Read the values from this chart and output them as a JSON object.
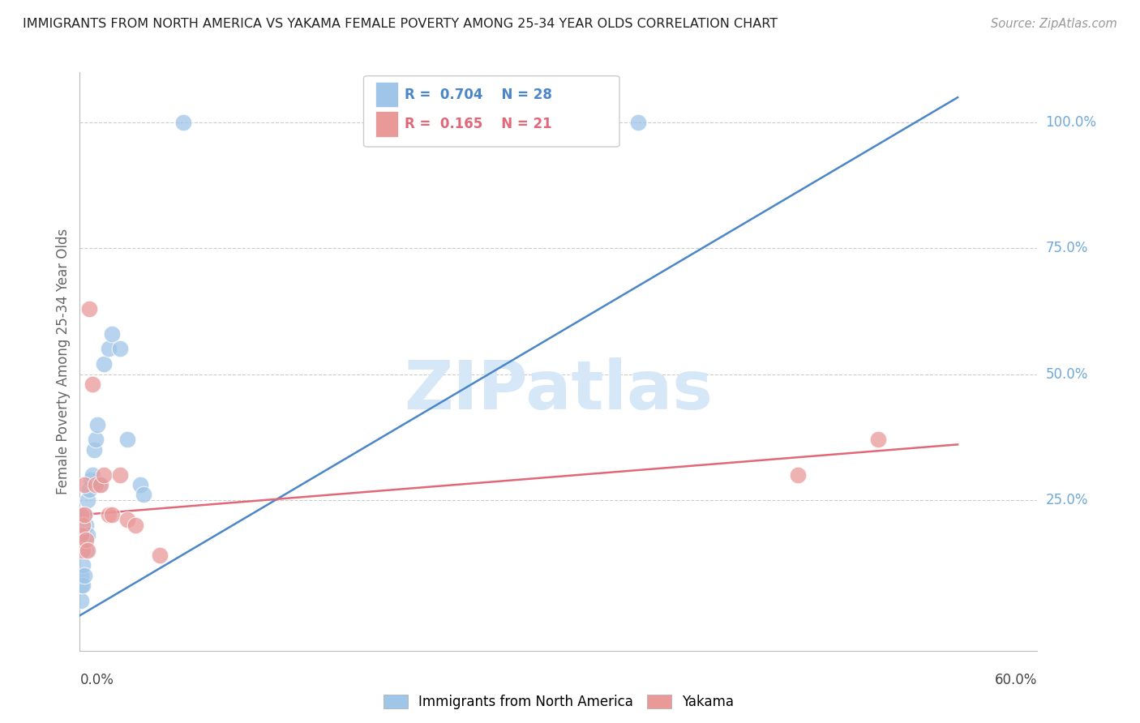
{
  "title": "IMMIGRANTS FROM NORTH AMERICA VS YAKAMA FEMALE POVERTY AMONG 25-34 YEAR OLDS CORRELATION CHART",
  "source": "Source: ZipAtlas.com",
  "ylabel": "Female Poverty Among 25-34 Year Olds",
  "legend1_R": "0.704",
  "legend1_N": "28",
  "legend2_R": "0.165",
  "legend2_N": "21",
  "blue_color": "#9fc5e8",
  "pink_color": "#ea9999",
  "blue_line_color": "#4a86c8",
  "pink_line_color": "#e06878",
  "ytick_color": "#6fa8dc",
  "watermark_color": "#d6e8f7",
  "xlim": [
    0.0,
    0.6
  ],
  "ylim": [
    -0.05,
    1.1
  ],
  "blue_line_x0": 0.0,
  "blue_line_y0": 0.02,
  "blue_line_x1": 0.55,
  "blue_line_y1": 1.05,
  "pink_line_x0": 0.0,
  "pink_line_y0": 0.22,
  "pink_line_x1": 0.55,
  "pink_line_y1": 0.36,
  "blue_pts_x": [
    0.001,
    0.001,
    0.001,
    0.002,
    0.002,
    0.002,
    0.003,
    0.003,
    0.004,
    0.004,
    0.005,
    0.005,
    0.006,
    0.007,
    0.008,
    0.009,
    0.01,
    0.011,
    0.012,
    0.015,
    0.018,
    0.02,
    0.025,
    0.03,
    0.038,
    0.04,
    0.065,
    0.35
  ],
  "blue_pts_y": [
    0.05,
    0.08,
    0.1,
    0.08,
    0.12,
    0.17,
    0.1,
    0.22,
    0.15,
    0.2,
    0.18,
    0.25,
    0.27,
    0.29,
    0.3,
    0.35,
    0.37,
    0.4,
    0.28,
    0.52,
    0.55,
    0.58,
    0.55,
    0.37,
    0.28,
    0.26,
    1.0,
    1.0
  ],
  "pink_pts_x": [
    0.001,
    0.001,
    0.002,
    0.002,
    0.003,
    0.003,
    0.004,
    0.005,
    0.006,
    0.008,
    0.01,
    0.013,
    0.015,
    0.018,
    0.02,
    0.025,
    0.03,
    0.035,
    0.05,
    0.45,
    0.5
  ],
  "pink_pts_y": [
    0.18,
    0.22,
    0.15,
    0.2,
    0.22,
    0.28,
    0.17,
    0.15,
    0.63,
    0.48,
    0.28,
    0.28,
    0.3,
    0.22,
    0.22,
    0.3,
    0.21,
    0.2,
    0.14,
    0.3,
    0.37
  ],
  "legend_label1": "Immigrants from North America",
  "legend_label2": "Yakama"
}
